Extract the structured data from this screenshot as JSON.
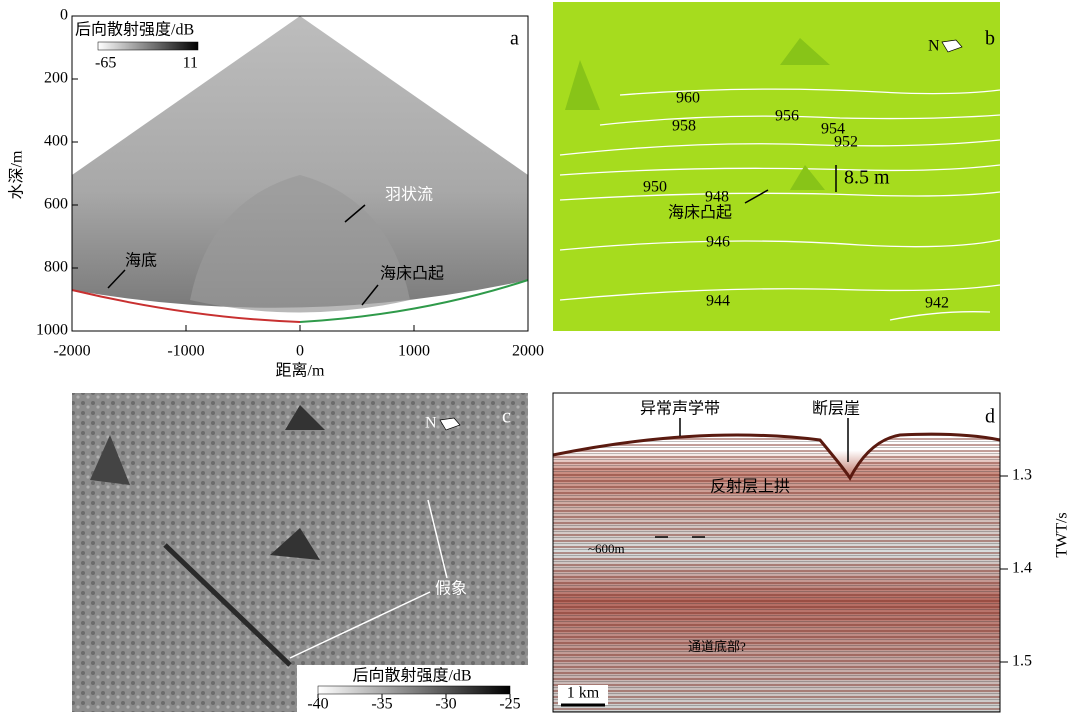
{
  "panels": [
    {
      "label": "a",
      "colorbar": {
        "title": "后向散射强度/dB",
        "min": -65,
        "max": 11
      },
      "y_axis": {
        "label": "水深/m",
        "ticks": [
          0,
          200,
          400,
          600,
          800,
          1000
        ]
      },
      "x_axis": {
        "label": "距离/m",
        "ticks": [
          -2000,
          -1000,
          0,
          1000,
          2000
        ]
      },
      "annotations": [
        "羽状流",
        "海底",
        "海床凸起"
      ]
    },
    {
      "label": "b",
      "north": "N",
      "contours": [
        "960",
        "958",
        "956",
        "954",
        "952",
        "950",
        "948",
        "946",
        "944",
        "942"
      ],
      "annotations": [
        "8.5 m",
        "海床凸起"
      ]
    },
    {
      "label": "c",
      "north": "N",
      "annotations": [
        "假象"
      ],
      "colorbar": {
        "title": "后向散射强度/dB",
        "ticks": [
          -40,
          -35,
          -30,
          -25
        ]
      }
    },
    {
      "label": "d",
      "annotations": [
        "异常声学带",
        "断层崖",
        "反射层上拱",
        "~600m",
        "通道底部?",
        "1 km"
      ],
      "y_axis": {
        "label": "TWT/s",
        "ticks": [
          1.3,
          1.4,
          1.5
        ]
      }
    }
  ]
}
